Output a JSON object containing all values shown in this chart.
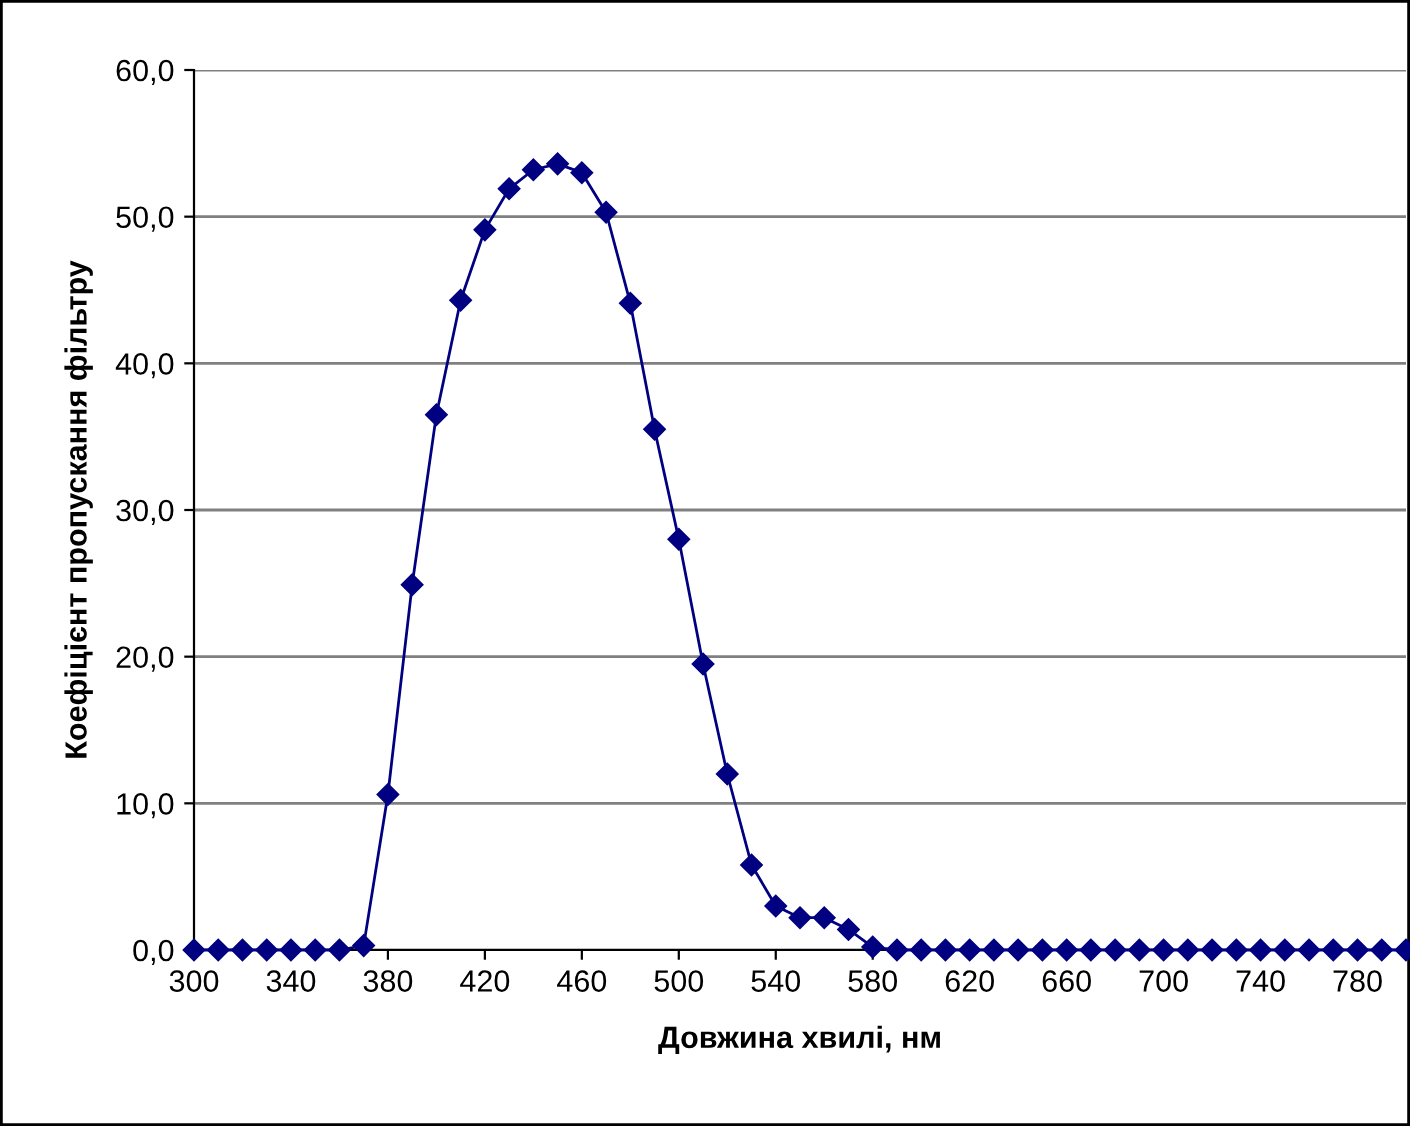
{
  "chart_data": {
    "type": "line",
    "xlabel": "Довжина хвилі, нм",
    "ylabel": "Коефіцієнт пропускання фільтру",
    "x": [
      300,
      310,
      320,
      330,
      340,
      350,
      360,
      370,
      380,
      390,
      400,
      410,
      420,
      430,
      440,
      450,
      460,
      470,
      480,
      490,
      500,
      510,
      520,
      530,
      540,
      550,
      560,
      570,
      580,
      590,
      600,
      610,
      620,
      630,
      640,
      650,
      660,
      670,
      680,
      690,
      700,
      710,
      720,
      730,
      740,
      750,
      760,
      770,
      780,
      790,
      800
    ],
    "series": [
      {
        "color": "#000080",
        "values": [
          0,
          0,
          0,
          0,
          0,
          0,
          0,
          0.3,
          10.6,
          24.9,
          36.5,
          44.3,
          49.1,
          51.9,
          53.2,
          53.6,
          53.0,
          50.3,
          44.1,
          35.5,
          28.0,
          19.5,
          12.0,
          5.8,
          3.0,
          2.2,
          2.2,
          1.4,
          0.2,
          0,
          0,
          0,
          0,
          0,
          0,
          0,
          0,
          0,
          0,
          0,
          0,
          0,
          0,
          0,
          0,
          0,
          0,
          0,
          0,
          0,
          0
        ]
      }
    ],
    "xlim": [
      300,
      800
    ],
    "xticks": [
      300,
      340,
      380,
      420,
      460,
      500,
      540,
      580,
      620,
      660,
      700,
      740,
      780
    ],
    "ylim": [
      0,
      60
    ],
    "yticks": [
      {
        "value": 0,
        "label": "0,0"
      },
      {
        "value": 10,
        "label": "10,0"
      },
      {
        "value": 20,
        "label": "20,0"
      },
      {
        "value": 30,
        "label": "30,0"
      },
      {
        "value": 40,
        "label": "40,0"
      },
      {
        "value": 50,
        "label": "50,0"
      },
      {
        "value": 60,
        "label": "60,0"
      }
    ],
    "grid": "y",
    "marker": "diamond",
    "line_style": "solid"
  }
}
